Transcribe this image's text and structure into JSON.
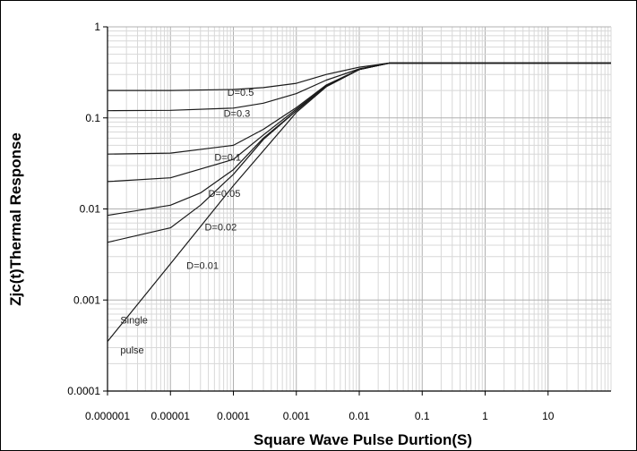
{
  "chart_data": {
    "type": "line",
    "title": "",
    "xlabel": "Square Wave Pulse Durtion(S)",
    "ylabel": "Zjc(t)Thermal Response",
    "x_scale": "log",
    "y_scale": "log",
    "xlim": [
      1e-06,
      100
    ],
    "ylim": [
      0.0001,
      1
    ],
    "grid": true,
    "x_tick_labels": [
      "0.000001",
      "0.00001",
      "0.0001",
      "0.001",
      "0.01",
      "0.1",
      "1",
      "10"
    ],
    "x_tick_values": [
      1e-06,
      1e-05,
      0.0001,
      0.001,
      0.01,
      0.1,
      1,
      10
    ],
    "y_tick_labels": [
      "0.0001",
      "0.001",
      "0.01",
      "0.1",
      "1"
    ],
    "y_tick_values": [
      0.0001,
      0.001,
      0.01,
      0.1,
      1
    ],
    "series": [
      {
        "label": "D=0.5",
        "x": [
          1e-06,
          1e-05,
          0.0001,
          0.0003,
          0.001,
          0.003,
          0.01,
          0.03,
          0.05,
          100
        ],
        "y": [
          0.2,
          0.2,
          0.205,
          0.215,
          0.24,
          0.3,
          0.36,
          0.4,
          0.4,
          0.4
        ]
      },
      {
        "label": "D=0.3",
        "x": [
          1e-06,
          1e-05,
          0.0001,
          0.0003,
          0.001,
          0.003,
          0.01,
          0.03,
          0.05,
          100
        ],
        "y": [
          0.12,
          0.121,
          0.128,
          0.145,
          0.185,
          0.26,
          0.345,
          0.4,
          0.4,
          0.4
        ]
      },
      {
        "label": "D=0.1",
        "x": [
          1e-06,
          1e-05,
          0.0001,
          0.0003,
          0.001,
          0.003,
          0.01,
          0.03,
          0.05,
          100
        ],
        "y": [
          0.04,
          0.041,
          0.05,
          0.075,
          0.13,
          0.23,
          0.34,
          0.4,
          0.4,
          0.4
        ]
      },
      {
        "label": "D=0.05",
        "x": [
          1e-06,
          1e-05,
          0.0001,
          0.0003,
          0.001,
          0.003,
          0.01,
          0.03,
          0.05,
          100
        ],
        "y": [
          0.02,
          0.022,
          0.035,
          0.065,
          0.125,
          0.225,
          0.34,
          0.4,
          0.4,
          0.4
        ]
      },
      {
        "label": "D=0.02",
        "x": [
          1e-06,
          1e-05,
          3e-05,
          0.0001,
          0.0003,
          0.001,
          0.003,
          0.01,
          0.03,
          0.05,
          100
        ],
        "y": [
          0.0085,
          0.011,
          0.015,
          0.027,
          0.06,
          0.12,
          0.225,
          0.34,
          0.4,
          0.4,
          0.4
        ]
      },
      {
        "label": "D=0.01",
        "x": [
          1e-06,
          1e-05,
          3e-05,
          0.0001,
          0.0003,
          0.001,
          0.003,
          0.01,
          0.03,
          0.05,
          100
        ],
        "y": [
          0.0043,
          0.0062,
          0.011,
          0.024,
          0.058,
          0.12,
          0.225,
          0.34,
          0.4,
          0.4,
          0.4
        ]
      },
      {
        "label": "Single pulse",
        "x": [
          1e-06,
          1e-05,
          0.0001,
          0.001,
          0.003,
          0.01,
          0.03,
          0.05,
          100
        ],
        "y": [
          0.00035,
          0.0025,
          0.018,
          0.115,
          0.22,
          0.34,
          0.4,
          0.4,
          0.4
        ]
      }
    ],
    "annotations": [
      {
        "text": "D=0.5",
        "x": 8e-05,
        "y": 0.175
      },
      {
        "text": "D=0.3",
        "x": 7e-05,
        "y": 0.103
      },
      {
        "text": "D=0.1",
        "x": 5e-05,
        "y": 0.034
      },
      {
        "text": "D=0.05",
        "x": 4e-05,
        "y": 0.0135
      },
      {
        "text": "D=0.02",
        "x": 3.5e-05,
        "y": 0.0058
      },
      {
        "text": "D=0.01",
        "x": 1.8e-05,
        "y": 0.0022
      },
      {
        "text": "Single",
        "x": 1.6e-06,
        "y": 0.00055
      },
      {
        "text": "pulse",
        "x": 1.6e-06,
        "y": 0.00026
      }
    ]
  }
}
